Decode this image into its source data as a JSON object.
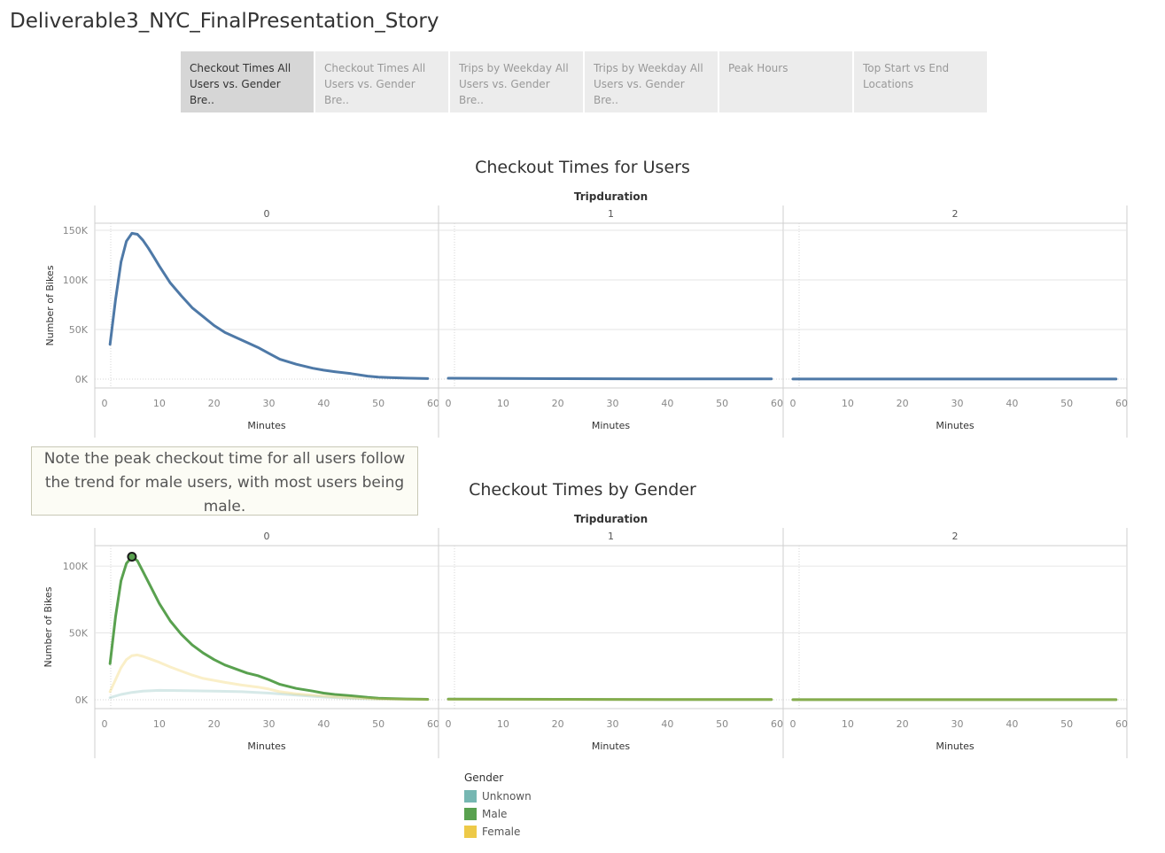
{
  "story_title": "Deliverable3_NYC_FinalPresentation_Story",
  "tabs": [
    {
      "label": "Checkout Times All Users vs. Gender Bre..",
      "active": true
    },
    {
      "label": "Checkout Times All Users vs. Gender Bre..",
      "active": false
    },
    {
      "label": "Trips by Weekday All Users vs. Gender Bre..",
      "active": false
    },
    {
      "label": "Trips by Weekday All Users vs. Gender Bre..",
      "active": false
    },
    {
      "label": "Peak Hours",
      "active": false
    },
    {
      "label": "Top Start vs End Locations",
      "active": false
    }
  ],
  "note": "Note the peak checkout time for all users follow the trend for male users, with most users being male.",
  "colors": {
    "users_line": "#4e79a7",
    "unknown": "#76b7b2",
    "male": "#59a14f",
    "female": "#edc948",
    "grid": "#e6e6e6",
    "axis_text": "#888888"
  },
  "chart_data": [
    {
      "type": "line",
      "title": "Checkout Times for Users",
      "column_header": "Tripduration",
      "panels": [
        "0",
        "1",
        "2"
      ],
      "xlabel": "Minutes",
      "ylabel": "Number of Bikes",
      "xlim": [
        0,
        60
      ],
      "xticks": [
        0,
        10,
        20,
        30,
        40,
        50,
        60
      ],
      "ylim": [
        0,
        150000
      ],
      "yticks": [
        0,
        50000,
        100000,
        150000
      ],
      "ytick_labels": [
        "0K",
        "50K",
        "100K",
        "150K"
      ],
      "grid": true,
      "series": [
        {
          "color": "#4e79a7",
          "panels": [
            {
              "x": [
                1,
                2,
                3,
                4,
                5,
                6,
                7,
                8,
                9,
                10,
                12,
                14,
                16,
                18,
                20,
                22,
                24,
                26,
                28,
                30,
                32,
                35,
                38,
                40,
                42,
                45,
                48,
                50,
                52,
                55,
                58,
                59
              ],
              "y": [
                35000,
                80000,
                118000,
                139000,
                147000,
                146000,
                140000,
                132000,
                123000,
                114000,
                97000,
                84000,
                72000,
                63000,
                54000,
                47000,
                42000,
                37000,
                32000,
                26000,
                20000,
                15000,
                11000,
                9000,
                7500,
                5500,
                3000,
                2000,
                1500,
                1000,
                600,
                500
              ]
            },
            {
              "x": [
                0,
                10,
                20,
                30,
                40,
                50,
                59
              ],
              "y": [
                900,
                600,
                450,
                350,
                300,
                250,
                200
              ]
            },
            {
              "x": [
                0,
                10,
                20,
                30,
                40,
                50,
                59
              ],
              "y": [
                100,
                100,
                100,
                100,
                100,
                100,
                100
              ]
            }
          ]
        }
      ]
    },
    {
      "type": "line",
      "title": "Checkout Times by Gender",
      "column_header": "Tripduration",
      "panels": [
        "0",
        "1",
        "2"
      ],
      "xlabel": "Minutes",
      "ylabel": "Number of Bikes",
      "xlim": [
        0,
        60
      ],
      "xticks": [
        0,
        10,
        20,
        30,
        40,
        50,
        60
      ],
      "ylim": [
        0,
        110000
      ],
      "yticks": [
        0,
        50000,
        100000
      ],
      "ytick_labels": [
        "0K",
        "50K",
        "100K"
      ],
      "grid": true,
      "highlight": {
        "series": "Male",
        "x": 5,
        "y": 107000
      },
      "series": [
        {
          "name": "Unknown",
          "color": "#76b7b2",
          "panels": [
            {
              "x": [
                1,
                3,
                5,
                7,
                10,
                15,
                20,
                25,
                30,
                35,
                40,
                45,
                50,
                55,
                59
              ],
              "y": [
                1500,
                4000,
                5500,
                6500,
                7000,
                6800,
                6500,
                6000,
                5000,
                3500,
                2000,
                1000,
                500,
                300,
                200
              ]
            },
            {
              "x": [
                0,
                10,
                20,
                30,
                40,
                50,
                59
              ],
              "y": [
                400,
                300,
                250,
                200,
                200,
                150,
                150
              ]
            },
            {
              "x": [
                0,
                10,
                20,
                30,
                40,
                50,
                59
              ],
              "y": [
                50,
                50,
                50,
                50,
                50,
                50,
                50
              ]
            }
          ]
        },
        {
          "name": "Male",
          "color": "#59a14f",
          "panels": [
            {
              "x": [
                1,
                2,
                3,
                4,
                5,
                6,
                7,
                8,
                9,
                10,
                12,
                14,
                16,
                18,
                20,
                22,
                24,
                26,
                28,
                30,
                32,
                35,
                38,
                40,
                42,
                45,
                48,
                50,
                52,
                55,
                58,
                59
              ],
              "y": [
                27000,
                62000,
                89000,
                102000,
                107000,
                104000,
                96000,
                88000,
                80000,
                72000,
                59000,
                49000,
                41000,
                35000,
                30000,
                26000,
                23000,
                20000,
                18000,
                15000,
                11500,
                8500,
                6500,
                5000,
                4000,
                3000,
                1800,
                1200,
                900,
                600,
                400,
                300
              ]
            },
            {
              "x": [
                0,
                10,
                20,
                30,
                40,
                50,
                59
              ],
              "y": [
                500,
                400,
                300,
                250,
                200,
                200,
                150
              ]
            },
            {
              "x": [
                0,
                10,
                20,
                30,
                40,
                50,
                59
              ],
              "y": [
                50,
                50,
                50,
                50,
                50,
                50,
                50
              ]
            }
          ]
        },
        {
          "name": "Female",
          "color": "#edc948",
          "panels": [
            {
              "x": [
                1,
                2,
                3,
                4,
                5,
                6,
                7,
                8,
                10,
                12,
                14,
                16,
                18,
                20,
                22,
                25,
                28,
                30,
                32,
                35,
                38,
                40,
                42,
                45,
                48,
                50,
                55,
                59
              ],
              "y": [
                6000,
                15000,
                24000,
                30000,
                33000,
                33500,
                32500,
                31000,
                28000,
                24500,
                21500,
                18500,
                16000,
                14500,
                13000,
                11000,
                9500,
                8000,
                6000,
                4500,
                3500,
                2800,
                2200,
                1500,
                900,
                600,
                300,
                200
              ]
            },
            {
              "x": [
                0,
                10,
                20,
                30,
                40,
                50,
                59
              ],
              "y": [
                300,
                250,
                200,
                150,
                150,
                100,
                100
              ]
            },
            {
              "x": [
                0,
                10,
                20,
                30,
                40,
                50,
                59
              ],
              "y": [
                50,
                50,
                50,
                50,
                50,
                50,
                50
              ]
            }
          ]
        }
      ]
    }
  ],
  "legend": {
    "title": "Gender",
    "items": [
      {
        "label": "Unknown",
        "color": "#76b7b2"
      },
      {
        "label": "Male",
        "color": "#59a14f"
      },
      {
        "label": "Female",
        "color": "#edc948"
      }
    ]
  }
}
